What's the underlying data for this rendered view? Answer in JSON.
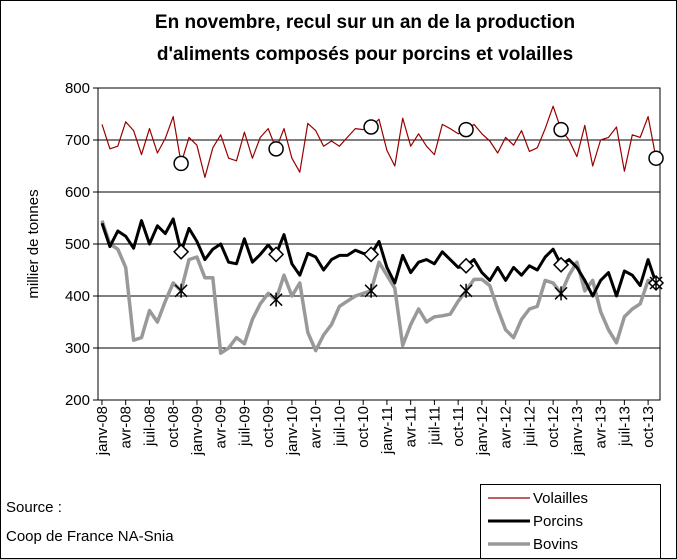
{
  "chart_data": {
    "type": "line",
    "title": [
      "En novembre, recul sur un an de la production",
      "d'aliments composés pour porcins et volailles"
    ],
    "y_label": "millier de tonnes",
    "source": [
      "Source :",
      "Coop de France NA-Snia"
    ],
    "categories": [
      "janv-08",
      null,
      null,
      "avr-08",
      null,
      null,
      "juil-08",
      null,
      null,
      "oct-08",
      null,
      null,
      "janv-09",
      null,
      null,
      "avr-09",
      null,
      null,
      "juil-09",
      null,
      null,
      "oct-09",
      null,
      null,
      "janv-10",
      null,
      null,
      "avr-10",
      null,
      null,
      "juil-10",
      null,
      null,
      "oct-10",
      null,
      null,
      "janv-11",
      null,
      null,
      "avr-11",
      null,
      null,
      "juil-11",
      null,
      null,
      "oct-11",
      null,
      null,
      "janv-12",
      null,
      null,
      "avr-12",
      null,
      null,
      "juil-12",
      null,
      null,
      "oct-12",
      null,
      null,
      "janv-13",
      null,
      null,
      "avr-13",
      null,
      null,
      "juil-13",
      null,
      null,
      "oct-13",
      null
    ],
    "ylim": [
      200,
      800
    ],
    "yticks": [
      200,
      300,
      400,
      500,
      600,
      700,
      800
    ],
    "grid": true,
    "marker_indices": [
      10,
      22,
      34,
      46,
      58,
      70
    ],
    "series": [
      {
        "name": "Volailles",
        "color": "#990000",
        "width": 1.2,
        "marker": "circle",
        "values": [
          730,
          683,
          688,
          735,
          718,
          672,
          722,
          675,
          703,
          745,
          655,
          705,
          690,
          628,
          685,
          710,
          665,
          660,
          715,
          665,
          705,
          722,
          683,
          722,
          665,
          638,
          732,
          718,
          688,
          698,
          688,
          705,
          722,
          720,
          725,
          740,
          680,
          650,
          742,
          688,
          712,
          688,
          672,
          730,
          722,
          712,
          720,
          730,
          712,
          698,
          675,
          705,
          690,
          718,
          678,
          685,
          722,
          765,
          720,
          700,
          668,
          728,
          650,
          700,
          705,
          725,
          640,
          710,
          705,
          745,
          665
        ]
      },
      {
        "name": "Porcins",
        "color": "#000000",
        "width": 3,
        "marker": "diamond",
        "values": [
          540,
          495,
          525,
          515,
          492,
          545,
          500,
          535,
          520,
          548,
          485,
          530,
          505,
          470,
          490,
          500,
          465,
          462,
          510,
          465,
          480,
          498,
          480,
          518,
          462,
          440,
          482,
          475,
          450,
          470,
          478,
          478,
          488,
          482,
          480,
          505,
          455,
          425,
          478,
          445,
          465,
          470,
          462,
          485,
          470,
          455,
          458,
          470,
          445,
          430,
          455,
          430,
          455,
          440,
          458,
          450,
          475,
          490,
          460,
          470,
          455,
          430,
          400,
          430,
          445,
          400,
          448,
          440,
          420,
          470,
          425
        ]
      },
      {
        "name": "Bovins",
        "color": "#999999",
        "width": 3.5,
        "marker": "asterisk",
        "values": [
          545,
          500,
          490,
          455,
          315,
          320,
          372,
          350,
          390,
          425,
          410,
          470,
          475,
          435,
          435,
          290,
          300,
          320,
          308,
          355,
          385,
          405,
          393,
          440,
          400,
          425,
          330,
          295,
          325,
          345,
          380,
          390,
          400,
          405,
          410,
          465,
          440,
          415,
          305,
          345,
          375,
          350,
          360,
          362,
          365,
          390,
          410,
          432,
          432,
          420,
          375,
          335,
          320,
          355,
          375,
          380,
          430,
          425,
          405,
          440,
          465,
          410,
          430,
          370,
          335,
          310,
          360,
          375,
          385,
          430,
          425
        ]
      }
    ]
  }
}
